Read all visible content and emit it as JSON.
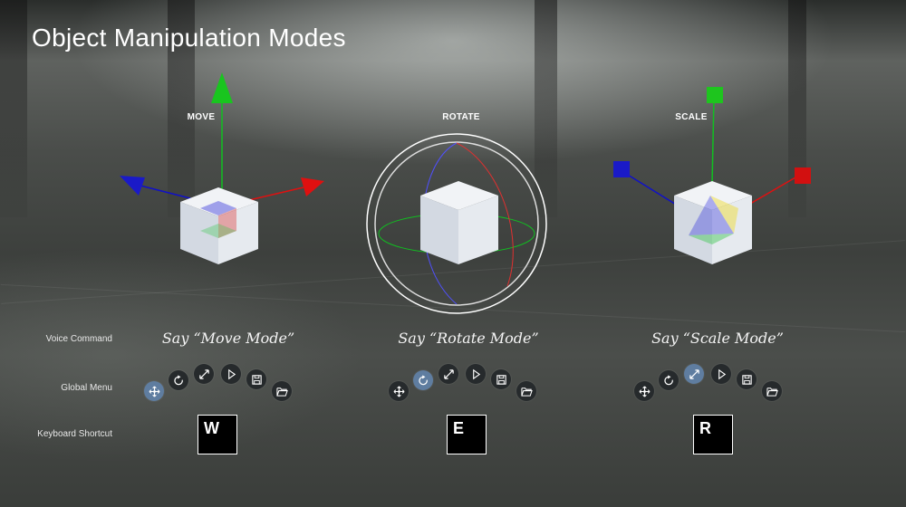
{
  "title": "Object Manipulation Modes",
  "row_labels": {
    "voice": "Voice Command",
    "menu": "Global Menu",
    "keyboard": "Keyboard Shortcut"
  },
  "modes": [
    {
      "label": "MOVE",
      "voice": "Say “Move Mode”",
      "key": "W",
      "active_button": "move"
    },
    {
      "label": "ROTATE",
      "voice": "Say “Rotate Mode”",
      "key": "E",
      "active_button": "rotate"
    },
    {
      "label": "SCALE",
      "voice": "Say “Scale Mode”",
      "key": "R",
      "active_button": "scale"
    }
  ],
  "menu_icons": [
    "move-icon",
    "rotate-icon",
    "scale-icon",
    "play-icon",
    "save-icon",
    "open-folder-icon"
  ],
  "colors": {
    "x_axis": "#e01010",
    "y_axis": "#10c020",
    "z_axis": "#1010c8",
    "active_button": "#5f7da0",
    "button": "#262a2c"
  }
}
